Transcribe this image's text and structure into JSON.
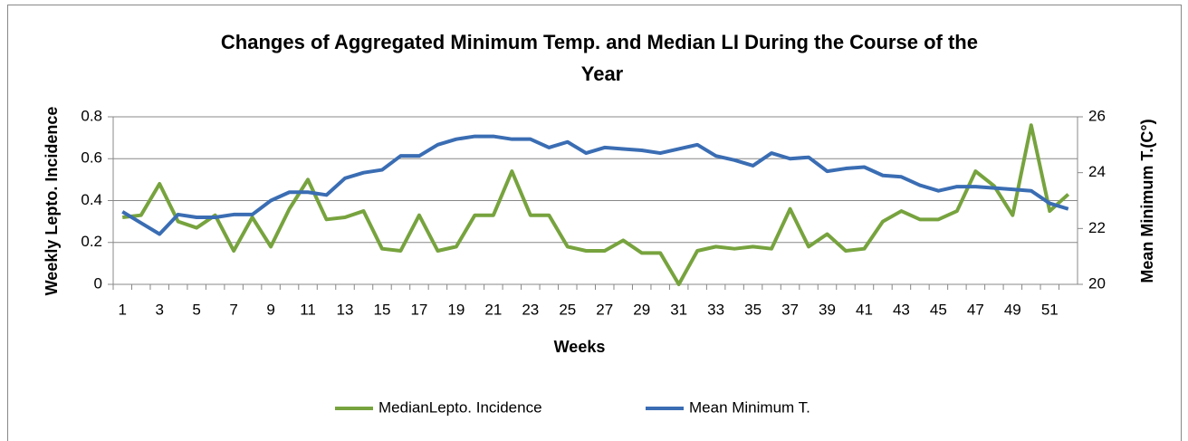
{
  "chart_data": {
    "type": "line",
    "title": "Changes of Aggregated Minimum Temp. and Median LI During the Course of the Year",
    "x_label": "Weeks",
    "y_label": "Weekly Lepto. Incidence",
    "y2_label": "Mean Minimum T.(C°)",
    "categories": [
      1,
      null,
      3,
      null,
      5,
      null,
      7,
      null,
      9,
      null,
      11,
      null,
      13,
      null,
      15,
      null,
      17,
      null,
      19,
      null,
      21,
      null,
      23,
      null,
      25,
      null,
      27,
      null,
      29,
      null,
      31,
      null,
      33,
      null,
      35,
      null,
      37,
      null,
      39,
      null,
      41,
      null,
      43,
      null,
      45,
      null,
      47,
      null,
      49,
      null,
      51,
      null
    ],
    "series": [
      {
        "name": "MedianLepto. Incidence",
        "color": "#77a33e",
        "values": [
          0.32,
          0.33,
          0.48,
          0.3,
          0.27,
          0.33,
          0.16,
          0.32,
          0.18,
          0.36,
          0.5,
          0.31,
          0.32,
          0.35,
          0.17,
          0.16,
          0.33,
          0.16,
          0.18,
          0.33,
          0.33,
          0.54,
          0.33,
          0.33,
          0.18,
          0.16,
          0.16,
          0.21,
          0.15,
          0.15,
          0.0,
          0.16,
          0.18,
          0.17,
          0.18,
          0.17,
          0.36,
          0.18,
          0.24,
          0.16,
          0.17,
          0.3,
          0.35,
          0.31,
          0.31,
          0.35,
          0.54,
          0.47,
          0.33,
          0.76,
          0.35,
          0.43
        ]
      },
      {
        "name": "Mean Minimum T.",
        "color": "#3a6db3",
        "axis": "y2",
        "values": [
          22.6,
          22.2,
          21.8,
          22.5,
          22.4,
          22.4,
          22.5,
          22.5,
          23.0,
          23.3,
          23.3,
          23.2,
          23.8,
          24.0,
          24.1,
          24.6,
          24.6,
          25.0,
          25.2,
          25.3,
          25.3,
          25.2,
          25.2,
          24.9,
          25.1,
          24.7,
          24.9,
          24.85,
          24.8,
          24.7,
          24.85,
          25.0,
          24.6,
          24.45,
          24.25,
          24.7,
          24.5,
          24.55,
          24.05,
          24.15,
          24.2,
          23.9,
          23.85,
          23.55,
          23.35,
          23.5,
          23.5,
          23.45,
          23.4,
          23.35,
          22.9,
          22.7
        ]
      }
    ],
    "ylim": [
      0,
      0.8
    ],
    "yticks": [
      0,
      0.2,
      0.4,
      0.6,
      0.8
    ],
    "y2lim": [
      20,
      26
    ],
    "y2ticks": [
      20,
      22,
      24,
      26
    ],
    "grid": true,
    "legend": "bottom"
  }
}
